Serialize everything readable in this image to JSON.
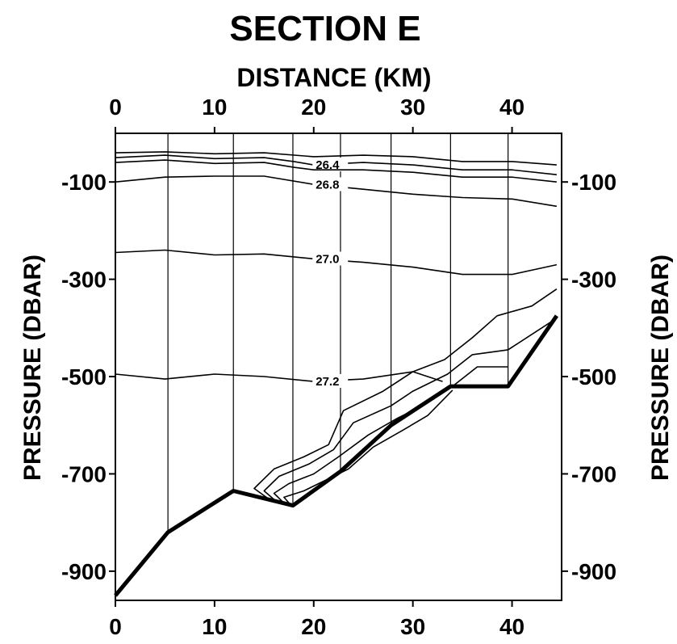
{
  "chart_data": {
    "type": "line",
    "title": "SECTION E",
    "x_axis_label": "DISTANCE (KM)",
    "y_axis_label": "PRESSURE (DBAR)",
    "xlim": [
      0,
      45
    ],
    "ylim": [
      -960,
      0
    ],
    "x_ticks": [
      0,
      10,
      20,
      30,
      40
    ],
    "y_ticks": [
      -100,
      -300,
      -500,
      -700,
      -900
    ],
    "x_tick_labels": [
      "0",
      "10",
      "20",
      "30",
      "40"
    ],
    "y_tick_labels": [
      "-100",
      "-300",
      "-500",
      "-700",
      "-900"
    ],
    "stations_km": [
      5.3,
      11.9,
      17.9,
      22.7,
      27.8,
      33.8,
      39.6
    ],
    "bottom_profile": [
      [
        0,
        -950
      ],
      [
        5.3,
        -820
      ],
      [
        11.9,
        -735
      ],
      [
        17.9,
        -765
      ],
      [
        22.7,
        -695
      ],
      [
        27.8,
        -600
      ],
      [
        33.8,
        -520
      ],
      [
        39.6,
        -520
      ],
      [
        44.5,
        -375
      ]
    ],
    "contours": [
      {
        "label": "",
        "points": [
          [
            0,
            -40
          ],
          [
            5,
            -38
          ],
          [
            10,
            -42
          ],
          [
            15,
            -40
          ],
          [
            20,
            -48
          ],
          [
            25,
            -45
          ],
          [
            30,
            -48
          ],
          [
            35,
            -58
          ],
          [
            40,
            -58
          ],
          [
            44.5,
            -65
          ]
        ]
      },
      {
        "label": "26.4",
        "points": [
          [
            0,
            -50
          ],
          [
            5,
            -45
          ],
          [
            10,
            -52
          ],
          [
            15,
            -50
          ],
          [
            18,
            -58
          ],
          [
            20,
            -65
          ],
          [
            25,
            -60
          ],
          [
            30,
            -65
          ],
          [
            35,
            -75
          ],
          [
            40,
            -75
          ],
          [
            44.5,
            -85
          ]
        ]
      },
      {
        "label": "",
        "points": [
          [
            0,
            -60
          ],
          [
            5,
            -55
          ],
          [
            10,
            -62
          ],
          [
            15,
            -60
          ],
          [
            18,
            -70
          ],
          [
            20,
            -75
          ],
          [
            25,
            -75
          ],
          [
            30,
            -80
          ],
          [
            35,
            -90
          ],
          [
            40,
            -90
          ],
          [
            44.5,
            -100
          ]
        ]
      },
      {
        "label": "26.8",
        "points": [
          [
            0,
            -100
          ],
          [
            5,
            -90
          ],
          [
            10,
            -88
          ],
          [
            15,
            -88
          ],
          [
            20,
            -105
          ],
          [
            25,
            -115
          ],
          [
            30,
            -125
          ],
          [
            35,
            -132
          ],
          [
            40,
            -135
          ],
          [
            44.5,
            -150
          ]
        ]
      },
      {
        "label": "27.0",
        "points": [
          [
            0,
            -245
          ],
          [
            5,
            -240
          ],
          [
            10,
            -250
          ],
          [
            15,
            -248
          ],
          [
            20,
            -258
          ],
          [
            25,
            -265
          ],
          [
            30,
            -275
          ],
          [
            35,
            -290
          ],
          [
            40,
            -290
          ],
          [
            44.5,
            -270
          ]
        ]
      },
      {
        "label": "27.2",
        "points": [
          [
            0,
            -495
          ],
          [
            5,
            -505
          ],
          [
            10,
            -495
          ],
          [
            15,
            -500
          ],
          [
            20,
            -510
          ],
          [
            25,
            -505
          ],
          [
            30,
            -490
          ],
          [
            33,
            -510
          ]
        ]
      },
      {
        "label": "",
        "points": [
          [
            15.7,
            -755
          ],
          [
            14,
            -730
          ],
          [
            16,
            -690
          ],
          [
            19,
            -665
          ],
          [
            21.5,
            -640
          ],
          [
            23,
            -570
          ],
          [
            27,
            -530
          ],
          [
            30,
            -490
          ],
          [
            33.2,
            -465
          ],
          [
            36,
            -420
          ],
          [
            38.5,
            -375
          ],
          [
            42,
            -355
          ],
          [
            44.5,
            -320
          ]
        ]
      },
      {
        "label": "",
        "points": [
          [
            16.3,
            -758
          ],
          [
            15,
            -735
          ],
          [
            16.5,
            -705
          ],
          [
            19.5,
            -680
          ],
          [
            22,
            -650
          ],
          [
            24,
            -595
          ],
          [
            27.8,
            -560
          ],
          [
            30,
            -530
          ],
          [
            33.5,
            -495
          ],
          [
            36,
            -455
          ],
          [
            39.6,
            -445
          ],
          [
            44.5,
            -380
          ]
        ]
      },
      {
        "label": "",
        "points": [
          [
            17.0,
            -760
          ],
          [
            16,
            -740
          ],
          [
            17.5,
            -720
          ],
          [
            20,
            -700
          ],
          [
            22.5,
            -665
          ],
          [
            25.5,
            -620
          ],
          [
            28.5,
            -585
          ],
          [
            31,
            -560
          ],
          [
            34,
            -520
          ],
          [
            36.5,
            -480
          ],
          [
            39.6,
            -480
          ]
        ]
      },
      {
        "label": "",
        "points": [
          [
            17.6,
            -762
          ],
          [
            17,
            -748
          ],
          [
            19,
            -735
          ],
          [
            21.5,
            -710
          ],
          [
            23.5,
            -690
          ],
          [
            26,
            -645
          ],
          [
            29,
            -610
          ],
          [
            31.5,
            -580
          ],
          [
            34,
            -528
          ]
        ]
      }
    ]
  }
}
